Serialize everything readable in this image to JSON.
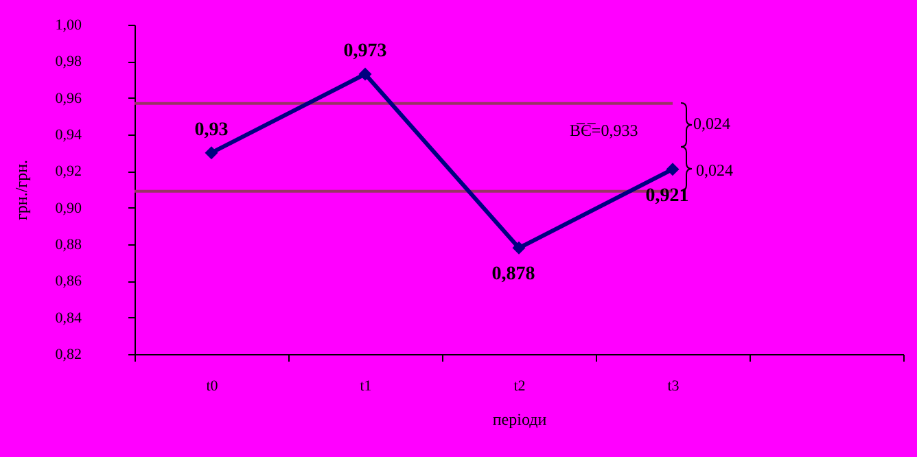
{
  "chart_data": {
    "type": "line",
    "xlabel": "періоди",
    "ylabel": "грн./грн.",
    "categories": [
      "t0",
      "t1",
      "t2",
      "t3",
      null
    ],
    "series": [
      {
        "color": "#000080",
        "values": [
          0.93,
          0.973,
          0.878,
          0.921,
          null
        ],
        "value_labels": [
          "0,93",
          "0,973",
          "0,878",
          "0,921",
          null
        ]
      }
    ],
    "ylim": [
      0.82,
      1.0
    ],
    "yticks": [
      {
        "value": 0.82,
        "label": "0,82"
      },
      {
        "value": 0.84,
        "label": "0,84"
      },
      {
        "value": 0.86,
        "label": "0,86"
      },
      {
        "value": 0.88,
        "label": "0,88"
      },
      {
        "value": 0.9,
        "label": "0,90"
      },
      {
        "value": 0.92,
        "label": "0,92"
      },
      {
        "value": 0.94,
        "label": "0,94"
      },
      {
        "value": 0.96,
        "label": "0,96"
      },
      {
        "value": 0.98,
        "label": "0,98"
      },
      {
        "value": 1.0,
        "label": "1,00"
      }
    ],
    "ref_lines": [
      {
        "axis": "y",
        "value": 0.957,
        "color": "#993366"
      },
      {
        "axis": "y",
        "value": 0.909,
        "color": "#993366"
      }
    ],
    "annotations": [
      "В̅Є̅=0,933",
      "0,024",
      "0,024"
    ],
    "marker": "diamond",
    "grid": false
  }
}
